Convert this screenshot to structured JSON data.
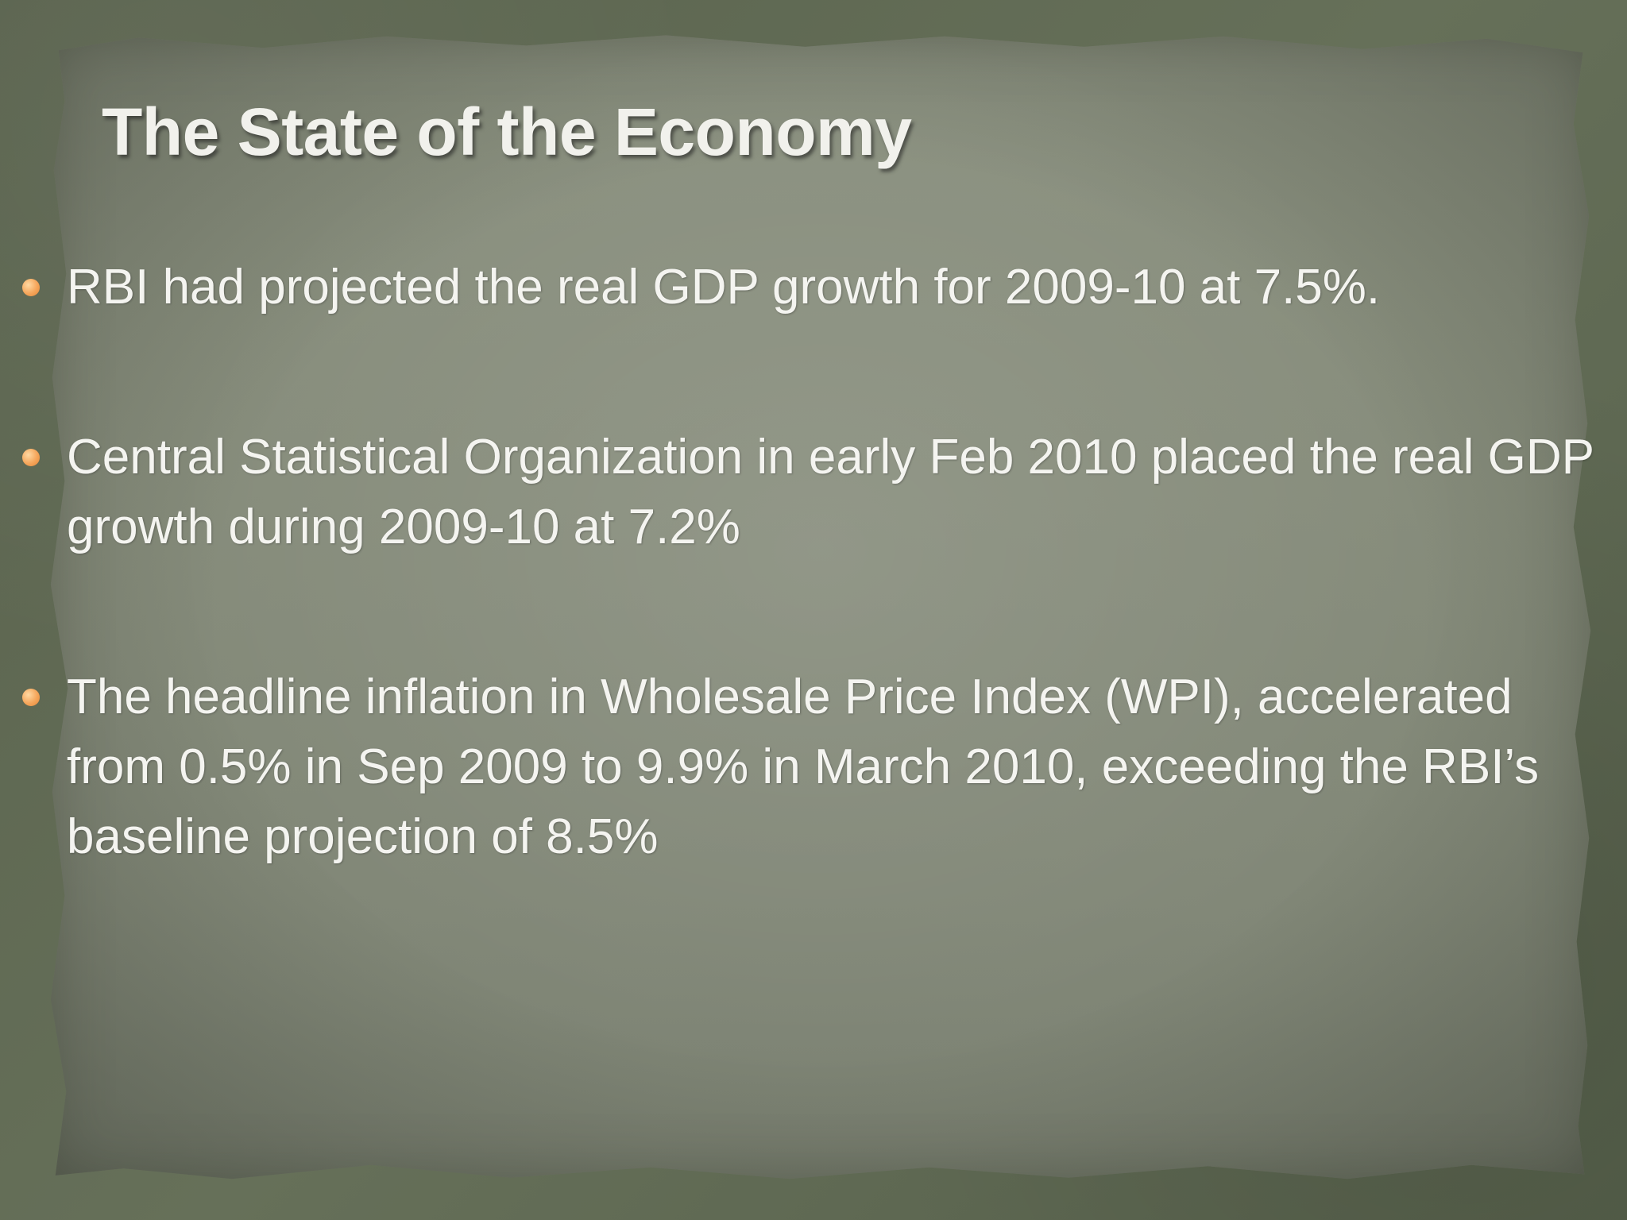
{
  "slide": {
    "title": "The State of the Economy",
    "bullets": [
      {
        "text": "RBI had projected the real GDP growth for 2009-10 at 7.5%."
      },
      {
        "text": "Central Statistical Organization in early Feb 2010 placed the real GDP growth during 2009-10 at 7.2%"
      },
      {
        "text": "The headline inflation in Wholesale Price Index (WPI), accelerated from 0.5% in Sep 2009 to 9.9% in March 2010, exceeding the RBI’s baseline projection of 8.5%"
      }
    ]
  },
  "colors": {
    "frame": "#5e6752",
    "paper": "#868c7b",
    "text": "#f4f4f0",
    "bullet_dot": "#f5a55a"
  },
  "icons": {
    "bullet": "orange-dot-bullet-icon"
  }
}
